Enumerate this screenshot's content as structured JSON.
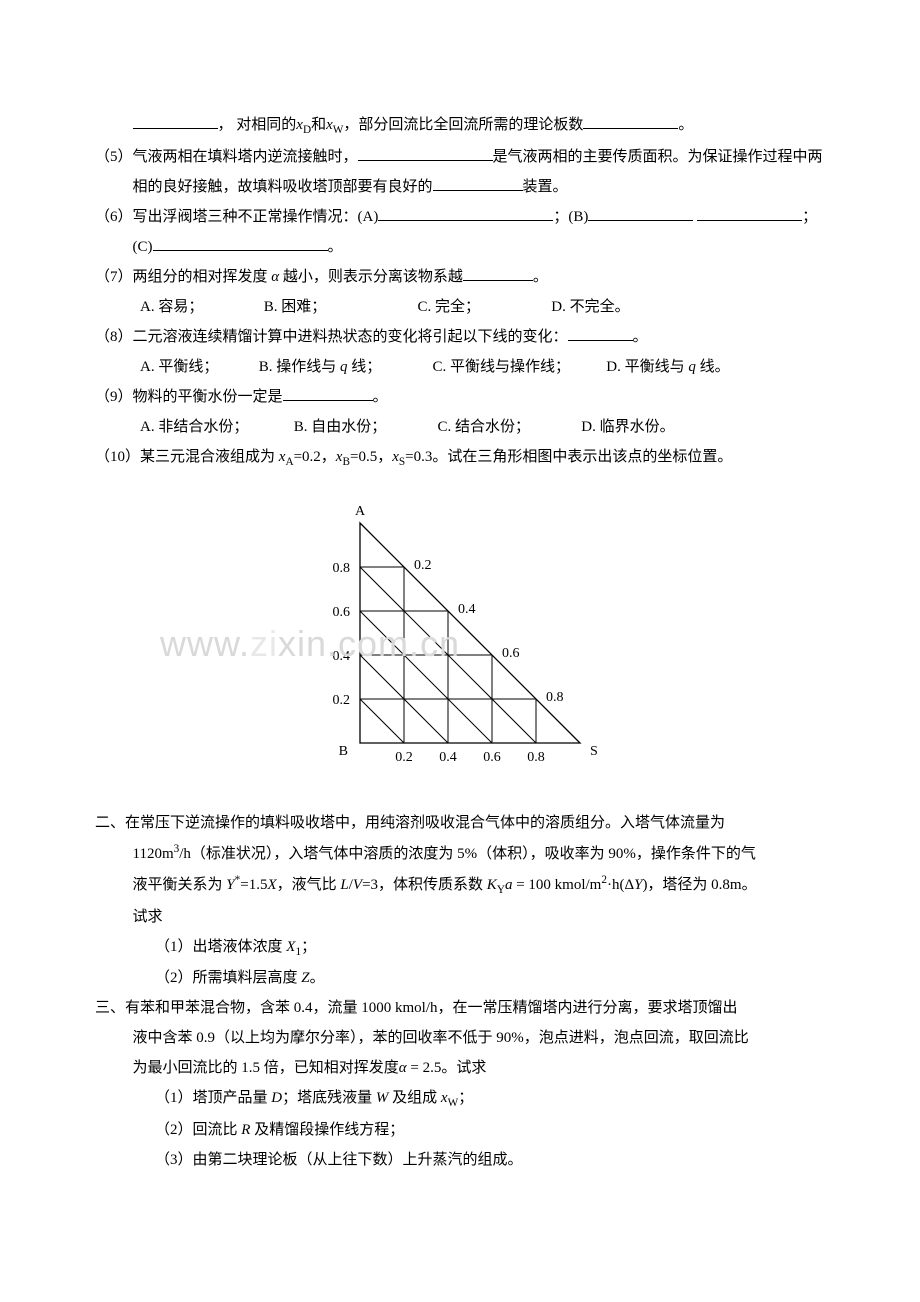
{
  "q4_cont": {
    "t1": "，  对相同的",
    "xd": "x",
    "xd_sub": "D",
    "t2": "和",
    "xw": "x",
    "xw_sub": "W",
    "t3": "，部分回流比全回流所需的理论板数",
    "t4": "。"
  },
  "q5": {
    "num": "（5）",
    "t1": "气液两相在填料塔内逆流接触时，",
    "t2": "是气液两相的主要传质面积。为保证操作过程中两相的良好接触，故填料吸收塔顶部要有良好的",
    "t3": "装置。"
  },
  "q6": {
    "num": "（6）",
    "t1": "写出浮阀塔三种不正常操作情况：(A)",
    "t2": "；(B)",
    "t3": "；(C)",
    "t4": "。"
  },
  "q7": {
    "num": "（7）",
    "t1": "两组分的相对挥发度 ",
    "alpha": "α",
    "t2": " 越小，则表示分离该物系越",
    "t3": "。",
    "opts": {
      "a": "A. 容易；",
      "b": "B. 困难；",
      "c": "C. 完全；",
      "d": "D. 不完全。"
    }
  },
  "q8": {
    "num": "（8）",
    "t1": "二元溶液连续精馏计算中进料热状态的变化将引起以下线的变化：",
    "t2": "。",
    "opts": {
      "a": "A. 平衡线；",
      "b_pre": "B. 操作线与 ",
      "b_q": "q",
      "b_post": " 线；",
      "c": "C. 平衡线与操作线；",
      "d_pre": "D. 平衡线与 ",
      "d_q": "q",
      "d_post": " 线。"
    }
  },
  "q9": {
    "num": "（9）",
    "t1": "物料的平衡水份一定是",
    "t2": "。",
    "opts": {
      "a": "A. 非结合水份；",
      "b": "B. 自由水份；",
      "c": "C. 结合水份；",
      "d": "D. 临界水份。"
    }
  },
  "q10": {
    "num": "（10）",
    "t1": "某三元混合液组成为 ",
    "xa": "x",
    "xa_sub": "A",
    "xa_val": "=0.2，",
    "xb": "x",
    "xb_sub": "B",
    "xb_val": "=0.5，",
    "xs": "x",
    "xs_sub": "S",
    "xs_val": "=0.3。",
    "t2": "试在三角形相图中表示出该点的坐标位置。"
  },
  "triangle": {
    "labels": {
      "top": "A",
      "left": "B",
      "right": "S"
    },
    "left_ticks": [
      "0.8",
      "0.6",
      "0.4",
      "0.2"
    ],
    "right_ticks": [
      "0.2",
      "0.4",
      "0.6",
      "0.8"
    ],
    "bottom_ticks": [
      "0.2",
      "0.4",
      "0.6",
      "0.8"
    ],
    "stroke": "#000000",
    "grid_stroke": "#000000",
    "text_color": "#000000"
  },
  "wm": {
    "text1": "www.",
    "text2": "zi",
    "text3": "xi",
    "text4": "n.com.cn"
  },
  "sec2": {
    "num": "二、",
    "line1": "在常压下逆流操作的填料吸收塔中，用纯溶剂吸收混合气体中的溶质组分。入塔气体流量为",
    "line2a": "1120m",
    "line2a_sup": "3",
    "line2b": "/h（标准状况），入塔气体中溶质的浓度为 5%（体积），吸收率为 90%，操作条件下的气",
    "line3a": "液平衡关系为 ",
    "y": "Y",
    "ystar": "*",
    "eq": "=1.5",
    "x": "X",
    "line3b": "，液气比 ",
    "lv": "L",
    "slash": "/",
    "vv": "V",
    "lvval": "=3，体积传质系数 ",
    "ky": "K",
    "ky_sub": "Y",
    "ka": "a",
    "kyval": " = 100 kmol/m",
    "kyval_sup": "2",
    "kyval2": "·h(Δ",
    "dy": "Y",
    "kyval3": ")，塔径为 0.8m。",
    "line4": "试求",
    "sub1_num": "（1）",
    "sub1": "出塔液体浓度 ",
    "x1": "X",
    "x1_sub": "1",
    "sub1_end": "；",
    "sub2_num": "（2）",
    "sub2": "所需填料层高度 ",
    "z": "Z",
    "sub2_end": "。"
  },
  "sec3": {
    "num": "三、",
    "line1": "有苯和甲苯混合物，含苯 0.4，流量 1000 kmol/h，在一常压精馏塔内进行分离，要求塔顶馏出",
    "line2": "液中含苯 0.9（以上均为摩尔分率），苯的回收率不低于 90%，泡点进料，泡点回流，取回流比",
    "line3a": "为最小回流比的 1.5 倍，已知相对挥发度",
    "alpha": "α",
    "line3b": " = 2.5。试求",
    "sub1_num": "（1）",
    "sub1a": "塔顶产品量 ",
    "d": "D",
    "sub1b": "；塔底残液量 ",
    "w": "W",
    "sub1c": " 及组成 ",
    "xw": "x",
    "xw_sub": "W",
    "sub1d": "；",
    "sub2_num": "（2）",
    "sub2a": "回流比 ",
    "r": "R",
    "sub2b": " 及精馏段操作线方程；",
    "sub3_num": "（3）",
    "sub3": "由第二块理论板（从上往下数）上升蒸汽的组成。"
  }
}
